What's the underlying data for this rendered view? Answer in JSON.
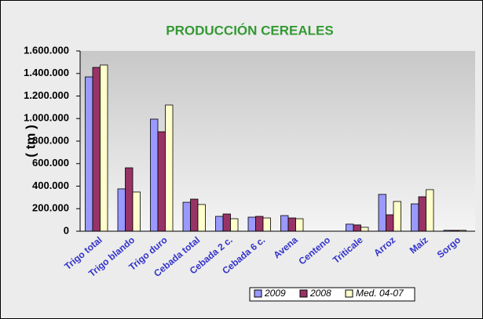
{
  "chart_data": {
    "type": "bar",
    "title": "PRODUCCIÓN CEREALES",
    "y_label": "( tm )",
    "categories": [
      "Trigo total",
      "Trigo blando",
      "Trigo duro",
      "Cebada total",
      "Cebada 2 c.",
      "Cebada 6 c.",
      "Avena",
      "Centeno",
      "Triticale",
      "Arroz",
      "Maíz",
      "Sorgo"
    ],
    "series": [
      {
        "name": "2009",
        "color": "#9999ff",
        "values": [
          1370000,
          376000,
          995000,
          257000,
          132000,
          125000,
          139000,
          null,
          63000,
          327000,
          243000,
          8000
        ]
      },
      {
        "name": "2008",
        "color": "#993366",
        "values": [
          1454000,
          563000,
          883000,
          285000,
          153000,
          132000,
          118000,
          null,
          56000,
          146000,
          306000,
          8000
        ]
      },
      {
        "name": "Med. 04-07",
        "color": "#ffffcc",
        "values": [
          1475000,
          348000,
          1120000,
          237000,
          111000,
          118000,
          111000,
          null,
          35000,
          264000,
          369000,
          8000
        ]
      }
    ],
    "ylim": [
      0,
      1600000
    ],
    "yticks": [
      0,
      {
        "value": 200000,
        "label": "200.000"
      },
      {
        "value": 400000,
        "label": "400.000"
      },
      {
        "value": 600000,
        "label": "600.000"
      },
      {
        "value": 800000,
        "label": "800.000"
      },
      {
        "value": 1000000,
        "label": "1.000.000"
      },
      {
        "value": 1200000,
        "label": "1.200.000"
      },
      {
        "value": 1400000,
        "label": "1.400.000"
      },
      {
        "value": 1600000,
        "label": "1.600.000"
      }
    ],
    "legend": "bottom"
  }
}
